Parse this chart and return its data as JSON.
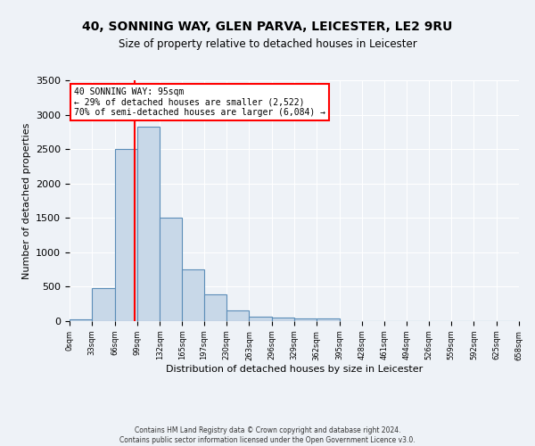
{
  "title_line1": "40, SONNING WAY, GLEN PARVA, LEICESTER, LE2 9RU",
  "title_line2": "Size of property relative to detached houses in Leicester",
  "xlabel": "Distribution of detached houses by size in Leicester",
  "ylabel": "Number of detached properties",
  "bar_color": "#c8d8e8",
  "bar_edgecolor": "#5b8db8",
  "property_line_x": 95,
  "property_line_color": "red",
  "annotation_text": "40 SONNING WAY: 95sqm\n← 29% of detached houses are smaller (2,522)\n70% of semi-detached houses are larger (6,084) →",
  "footer_line1": "Contains HM Land Registry data © Crown copyright and database right 2024.",
  "footer_line2": "Contains public sector information licensed under the Open Government Licence v3.0.",
  "bin_edges": [
    0,
    33,
    66,
    99,
    132,
    165,
    197,
    230,
    263,
    296,
    329,
    362,
    395,
    428,
    461,
    494,
    526,
    559,
    592,
    625,
    658
  ],
  "bar_heights": [
    20,
    480,
    2500,
    2820,
    1500,
    750,
    390,
    155,
    65,
    55,
    40,
    35,
    0,
    0,
    0,
    0,
    0,
    0,
    0,
    0
  ],
  "ylim": [
    0,
    3500
  ],
  "yticks": [
    0,
    500,
    1000,
    1500,
    2000,
    2500,
    3000,
    3500
  ],
  "background_color": "#eef2f7",
  "grid_color": "#ffffff",
  "annotation_box_color": "white",
  "annotation_box_edgecolor": "red"
}
